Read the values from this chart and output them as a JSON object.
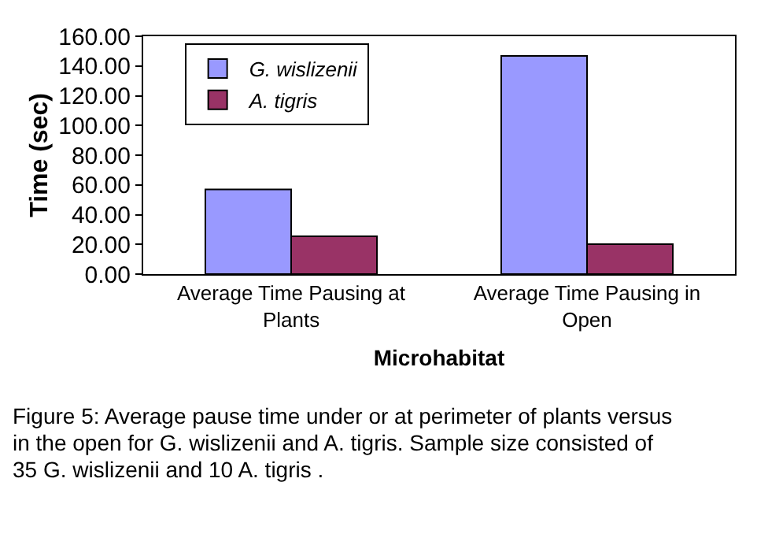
{
  "chart_data": {
    "type": "bar",
    "xlabel": "Microhabitat",
    "ylabel": "Time (sec)",
    "categories": [
      "Average Time Pausing at Plants",
      "Average Time Pausing in Open"
    ],
    "series": [
      {
        "name": "G. wislizenii",
        "color": "#9999ff",
        "values": [
          57.0,
          146.8
        ]
      },
      {
        "name": "A. tigris",
        "color": "#993366",
        "values": [
          25.4,
          20.1
        ]
      }
    ],
    "ylim": [
      0,
      160
    ],
    "yticks": [
      {
        "value": 0,
        "label": "0.00"
      },
      {
        "value": 20,
        "label": "20.00"
      },
      {
        "value": 40,
        "label": "40.00"
      },
      {
        "value": 60,
        "label": "60.00"
      },
      {
        "value": 80,
        "label": "80.00"
      },
      {
        "value": 100,
        "label": "100.00"
      },
      {
        "value": 120,
        "label": "120.00"
      },
      {
        "value": 140,
        "label": "140.00"
      },
      {
        "value": 160,
        "label": "160.00"
      }
    ],
    "grid": false,
    "legend": "top left",
    "annotations": [
      "Figure 5:     Average pause time under or at perimeter  of plants versus in the open for G. wislizenii and A. tigris.  Sample size consisted of 35 G. wislizenii and 10 A. tigris ."
    ]
  }
}
